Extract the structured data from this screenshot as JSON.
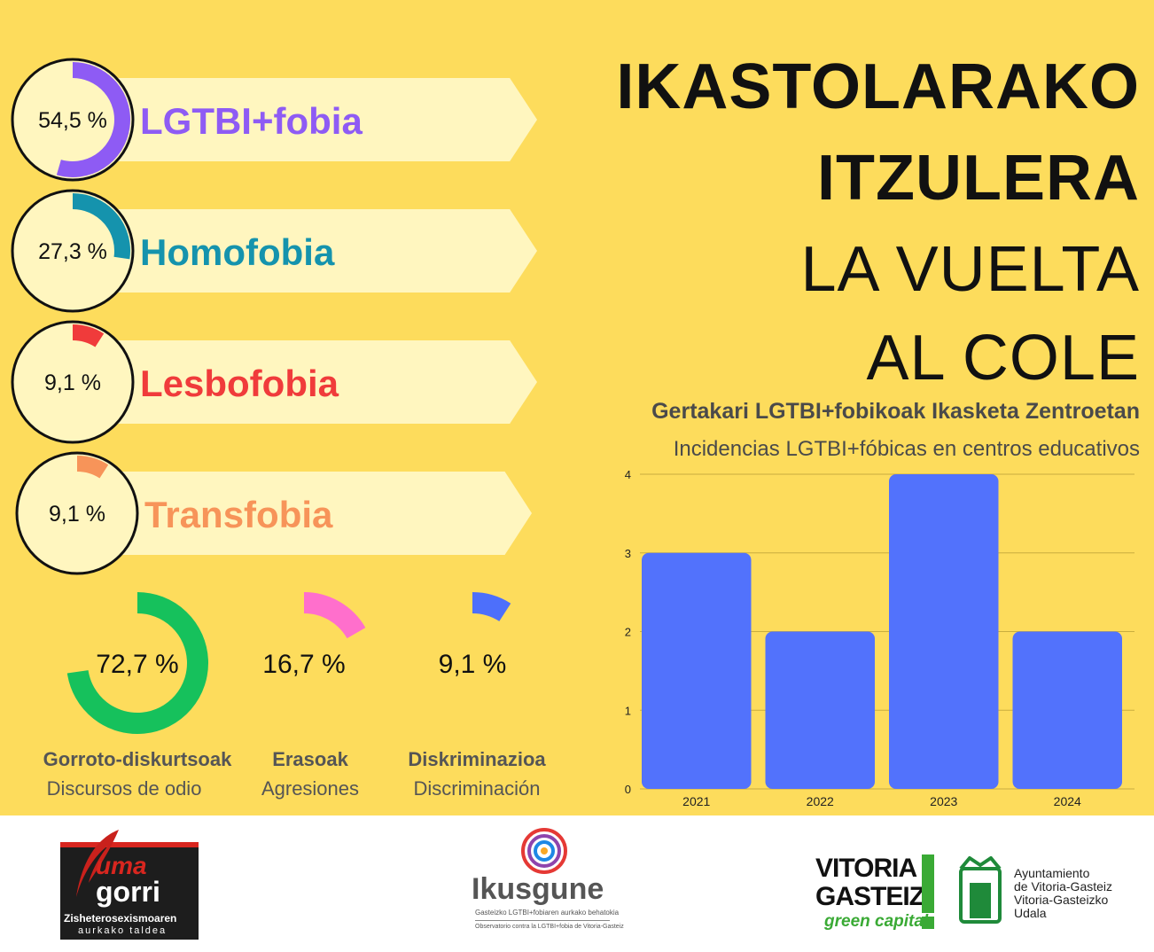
{
  "title": {
    "line1": "IKASTOLARAKO",
    "line2": "ITZULERA",
    "line3": "LA VUELTA",
    "line4": "AL COLE"
  },
  "phobias": [
    {
      "label": "LGTBI+fobia",
      "percent_text": "54,5 %",
      "value": 54.5,
      "color": "#8e5bf4"
    },
    {
      "label": "Homofobia",
      "percent_text": "27,3 %",
      "value": 27.3,
      "color": "#1593ad"
    },
    {
      "label": "Lesbofobia",
      "percent_text": "9,1 %",
      "value": 9.1,
      "color": "#f03b3b"
    },
    {
      "label": "Transfobia",
      "percent_text": "9,1 %",
      "value": 9.1,
      "color": "#f79459"
    }
  ],
  "types": [
    {
      "percent_text": "72,7 %",
      "value": 72.7,
      "color": "#16c15c",
      "label_eu": "Gorroto-diskurtsoak",
      "label_es": "Discursos de odio"
    },
    {
      "percent_text": "16,7 %",
      "value": 16.7,
      "color": "#ff6fcc",
      "label_eu": "Erasoak",
      "label_es": "Agresiones"
    },
    {
      "percent_text": "9,1 %",
      "value": 9.1,
      "color": "#4d6ffb",
      "label_eu": "Diskriminazioa",
      "label_es": "Discriminación"
    }
  ],
  "chart_title_eu": "Gertakari LGTBI+fobikoak  Ikasketa Zentroetan",
  "chart_title_es": "Incidencias LGTBI+fóbicas en centros educativos",
  "chart_data": {
    "type": "bar",
    "title": "Incidencias LGTBI+fóbicas en centros educativos",
    "categories": [
      "2021",
      "2022",
      "2023",
      "2024"
    ],
    "values": [
      3,
      2,
      4,
      2
    ],
    "yticks": [
      "0",
      "1",
      "2",
      "3",
      "4"
    ],
    "ylim": [
      0,
      4
    ],
    "xlabel": "",
    "ylabel": "",
    "grid": true,
    "bar_color": "#5272fc",
    "grid_color": "#c9ad3f"
  },
  "footer": {
    "uma_top": "uma",
    "uma_bottom": "gorri",
    "uma_sub1": "Zisheterosexismoaren",
    "uma_sub2": "aurkako taldea",
    "ikusgune_name": "Ikusgune",
    "ikusgune_sub1": "Gasteizko LGTBI+fobiaren aurkako behatokia",
    "ikusgune_sub2": "Observatorio contra la LGTBI+fobia de Vitoria-Gasteiz",
    "vg_line1": "VITORIA",
    "vg_line2": "GASTEIZ",
    "vg_line3": "green capital",
    "ayto_line1": "Ayuntamiento",
    "ayto_line2": "de Vitoria-Gasteiz",
    "ayto_line3": "Vitoria-Gasteizko",
    "ayto_line4": "Udala"
  }
}
